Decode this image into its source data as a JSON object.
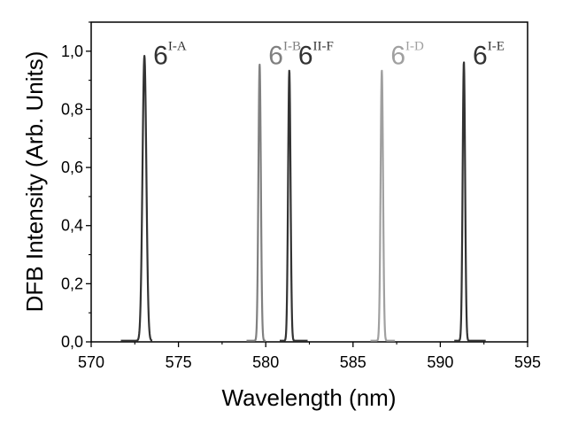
{
  "chart_data": {
    "type": "line",
    "title": "",
    "xlabel": "Wavelength (nm)",
    "ylabel": "DFB Intensity (Arb. Units)",
    "xlim": [
      570,
      595
    ],
    "ylim": [
      0.0,
      1.1
    ],
    "x_ticks": [
      570,
      575,
      580,
      585,
      590,
      595
    ],
    "y_ticks": [
      0.0,
      0.2,
      0.4,
      0.6,
      0.8,
      1.0
    ],
    "x_tick_labels": [
      "570",
      "575",
      "580",
      "585",
      "590",
      "595"
    ],
    "y_tick_labels": [
      "0,0",
      "0,2",
      "0,4",
      "0,6",
      "0,8",
      "1,0"
    ],
    "grid": false,
    "legend": "none",
    "series": [
      {
        "label_main": "6",
        "label_sup": "I-A",
        "color": "#333333",
        "center": 573.05,
        "peak": 0.98,
        "width": 0.11,
        "start": 571.7,
        "end": 573.5
      },
      {
        "label_main": "6",
        "label_sup": "I-B",
        "color": "#808080",
        "center": 579.65,
        "peak": 0.95,
        "width": 0.07,
        "start": 578.9,
        "end": 580.0
      },
      {
        "label_main": "6",
        "label_sup": "II-F",
        "color": "#333333",
        "center": 581.35,
        "peak": 0.93,
        "width": 0.07,
        "start": 580.8,
        "end": 582.4
      },
      {
        "label_main": "6",
        "label_sup": "I-D",
        "color": "#a0a0a0",
        "center": 586.65,
        "peak": 0.93,
        "width": 0.07,
        "start": 586.0,
        "end": 587.4
      },
      {
        "label_main": "6",
        "label_sup": "I-E",
        "color": "#333333",
        "center": 591.35,
        "peak": 0.96,
        "width": 0.07,
        "start": 590.8,
        "end": 592.6
      }
    ]
  }
}
